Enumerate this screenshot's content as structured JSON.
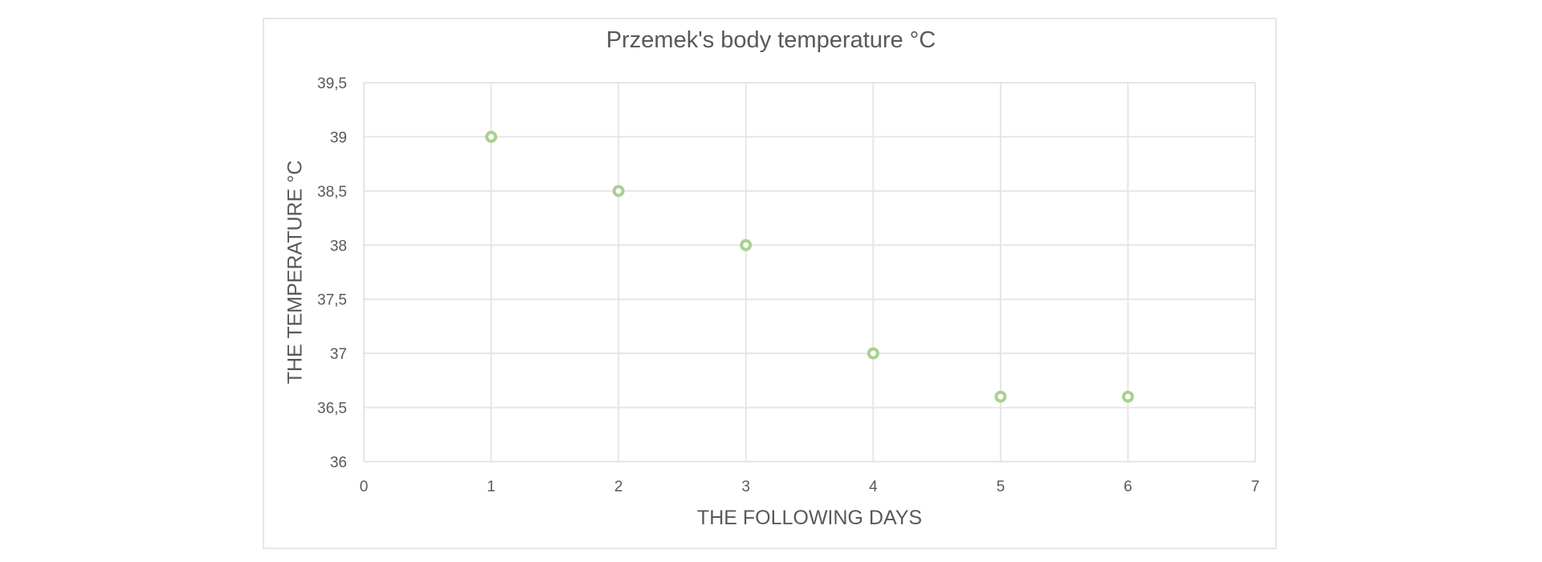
{
  "chart_data": {
    "type": "scatter",
    "title": "Przemek's body temperature °C",
    "xlabel": "THE FOLLOWING DAYS",
    "ylabel": "THE TEMPERATURE °C",
    "xlim": [
      0,
      7
    ],
    "ylim": [
      36,
      39.5
    ],
    "x_ticks": [
      "0",
      "1",
      "2",
      "3",
      "4",
      "5",
      "6",
      "7"
    ],
    "y_ticks": [
      "36",
      "36,5",
      "37",
      "37,5",
      "38",
      "38,5",
      "39",
      "39,5"
    ],
    "grid": true,
    "legend": null,
    "series": [
      {
        "name": "Body temperature",
        "color": "#A9D18E",
        "marker": "hollow-circle",
        "x": [
          1,
          2,
          3,
          4,
          5,
          6
        ],
        "y": [
          39,
          38.5,
          38,
          37,
          36.6,
          36.6
        ]
      }
    ]
  },
  "colors": {
    "text": "#595959",
    "grid": "#e6e6e6",
    "marker": "#A9D18E",
    "background": "#ffffff"
  }
}
